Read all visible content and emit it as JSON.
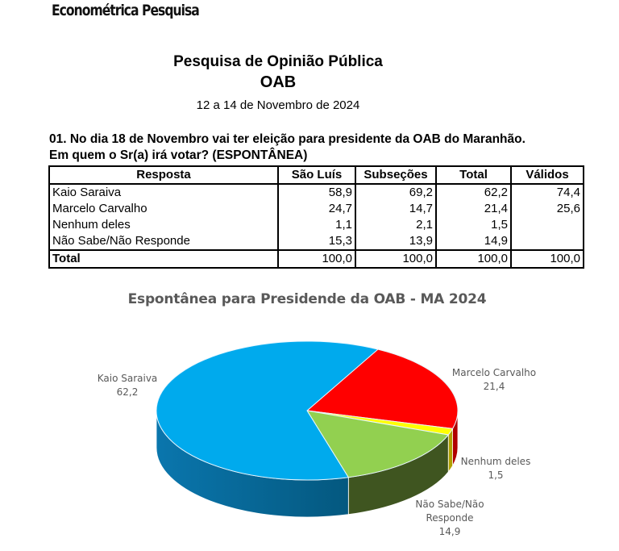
{
  "brand": "Econométrica Pesquisa",
  "header": {
    "title": "Pesquisa de Opinião Pública",
    "subtitle": "OAB",
    "date": "12 a 14 de Novembro de 2024"
  },
  "question": {
    "line1": "01. No dia 18 de Novembro vai ter eleição para presidente da OAB do Maranhão.",
    "line2": "Em quem o Sr(a) irá votar? (ESPONTÂNEA)"
  },
  "table": {
    "headers": [
      "Resposta",
      "São Luís",
      "Subseções",
      "Total",
      "Válidos"
    ],
    "rows": [
      [
        "Kaio Saraiva",
        "58,9",
        "69,2",
        "62,2",
        "74,4"
      ],
      [
        "Marcelo Carvalho",
        "24,7",
        "14,7",
        "21,4",
        "25,6"
      ],
      [
        "Nenhum deles",
        "1,1",
        "2,1",
        "1,5",
        ""
      ],
      [
        "Não Sabe/Não Responde",
        "15,3",
        "13,9",
        "14,9",
        ""
      ]
    ],
    "total": [
      "Total",
      "100,0",
      "100,0",
      "100,0",
      "100,0"
    ]
  },
  "chart_data": {
    "type": "pie",
    "title": "Espontânea para Presidende da OAB - MA 2024",
    "categories": [
      "Kaio Saraiva",
      "Marcelo Carvalho",
      "Nenhum deles",
      "Não Sabe/Não Responde"
    ],
    "values": [
      62.2,
      21.4,
      1.5,
      14.9
    ],
    "value_labels": [
      "62,2",
      "21,4",
      "1,5",
      "14,9"
    ],
    "colors": [
      "#00aaed",
      "#ff0000",
      "#ffff00",
      "#92d050"
    ],
    "side_colors": [
      "#0a76ad",
      "#b00000",
      "#b0a000",
      "#3f5520"
    ],
    "style": "3d",
    "legend": "none"
  },
  "labels": {
    "kaio": [
      "Kaio Saraiva",
      "62,2"
    ],
    "marcelo": [
      "Marcelo Carvalho",
      "21,4"
    ],
    "nenhum": [
      "Nenhum deles",
      "1,5"
    ],
    "nsnr": [
      "Não Sabe/Não",
      "Responde",
      "14,9"
    ]
  }
}
